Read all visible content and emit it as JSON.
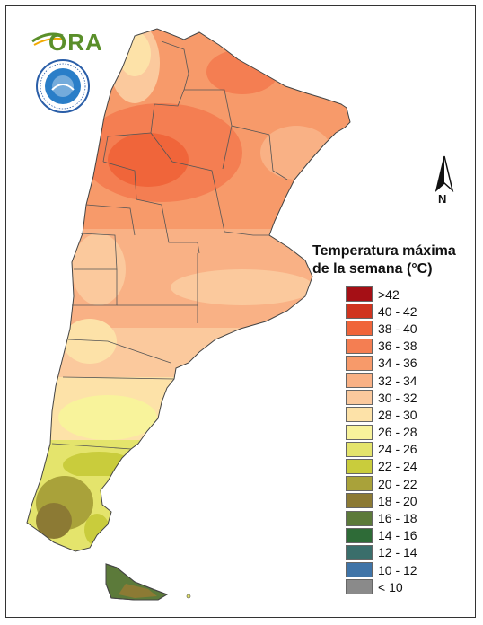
{
  "logo": {
    "text": "ORA"
  },
  "north_arrow": {
    "label": "N"
  },
  "legend": {
    "title_line1": "Temperatura máxima",
    "title_line2": "de la semana (°C)",
    "items": [
      {
        "label": ">42",
        "color": "#a50f15"
      },
      {
        "label": "40 - 42",
        "color": "#d0341f"
      },
      {
        "label": "38 - 40",
        "color": "#f0653a"
      },
      {
        "label": "36 - 38",
        "color": "#f47e52"
      },
      {
        "label": "34 - 36",
        "color": "#f79a6a"
      },
      {
        "label": "32 - 34",
        "color": "#f9b185"
      },
      {
        "label": "30 - 32",
        "color": "#fbc99d"
      },
      {
        "label": "28 - 30",
        "color": "#fde2a8"
      },
      {
        "label": "26 - 28",
        "color": "#f8f39b"
      },
      {
        "label": "24 - 26",
        "color": "#e4e46c"
      },
      {
        "label": "22 - 24",
        "color": "#c9cc3c"
      },
      {
        "label": "20 - 22",
        "color": "#a9a23a"
      },
      {
        "label": "18 - 20",
        "color": "#8c7a34"
      },
      {
        "label": "16 - 18",
        "color": "#5c7a3a"
      },
      {
        "label": "14 - 16",
        "color": "#2e6b37"
      },
      {
        "label": "12 - 14",
        "color": "#3a6e6b"
      },
      {
        "label": "10 - 12",
        "color": "#3f74a8"
      },
      {
        "label": "< 10",
        "color": "#8a8a8a"
      }
    ]
  }
}
